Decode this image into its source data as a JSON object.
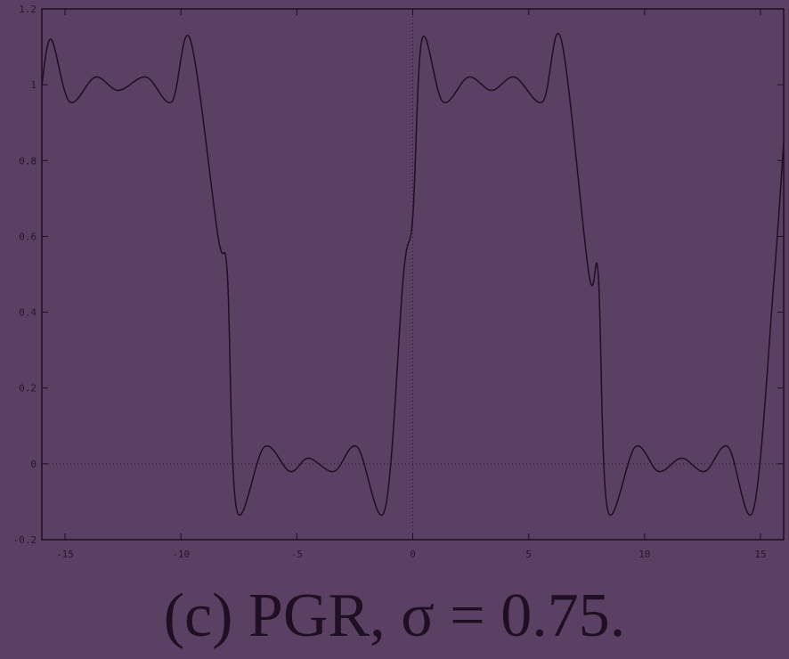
{
  "caption": "(c) PGR, σ = 0.75.",
  "colors": {
    "background": "#5a4062",
    "ink": "#1f0f22",
    "zero_line": "#2e1a33"
  },
  "chart_data": {
    "type": "line",
    "title": "",
    "xlabel": "",
    "ylabel": "",
    "xlim": [
      -16,
      16
    ],
    "ylim": [
      -0.2,
      1.2
    ],
    "grid": false,
    "zero_axes": "dotted",
    "x_ticks": [
      "-15",
      "-10",
      "-5",
      "0",
      "5",
      "10",
      "15"
    ],
    "y_ticks": [
      "-0.2",
      "0",
      "0.2",
      "0.4",
      "0.6",
      "0.8",
      "1",
      "1.2"
    ],
    "series": [
      {
        "description": "square wave, period 16, filtered reconstruction with Gibbs-like ringing",
        "x": [
          -16,
          -15.6,
          -14.8,
          -13.7,
          -12.7,
          -11.5,
          -10.4,
          -9.6,
          -8.4,
          -8.0,
          -7.6,
          -6.4,
          -5.3,
          -4.5,
          -3.4,
          -2.4,
          -1.2,
          -0.4,
          0,
          0.4,
          1.3,
          2.4,
          3.4,
          4.4,
          5.6,
          6.4,
          7.6,
          8.0,
          8.4,
          9.6,
          10.6,
          11.6,
          12.6,
          13.6,
          14.7,
          15.6,
          16
        ],
        "y": [
          1.0,
          1.12,
          0.955,
          1.02,
          0.985,
          1.02,
          0.955,
          1.12,
          0.6,
          0.5,
          -0.12,
          0.045,
          -0.02,
          0.015,
          -0.02,
          0.045,
          -0.12,
          0.5,
          0.65,
          1.12,
          0.955,
          1.02,
          0.985,
          1.02,
          0.955,
          1.12,
          0.5,
          0.5,
          -0.12,
          0.045,
          -0.02,
          0.015,
          -0.02,
          0.045,
          -0.12,
          0.5,
          0.85
        ]
      }
    ]
  }
}
